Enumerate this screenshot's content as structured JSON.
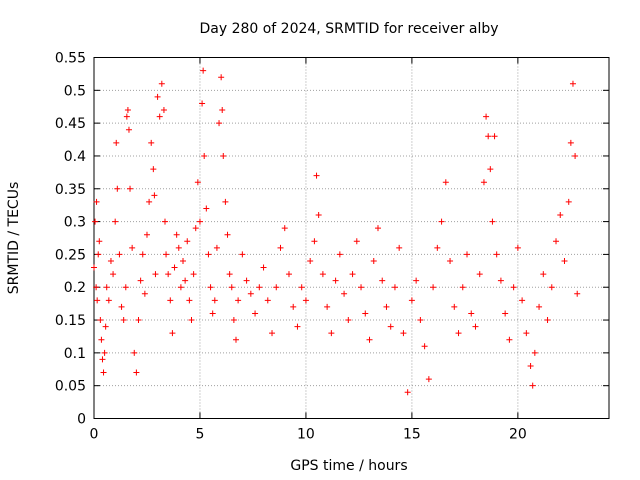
{
  "chart_data": {
    "type": "scatter",
    "title": "Day 280 of 2024, SRMTID for receiver alby",
    "xlabel": "GPS time / hours",
    "ylabel": "SRMTID / TECUs",
    "xlim": [
      0,
      24.3
    ],
    "ylim": [
      0,
      0.55
    ],
    "xticks": [
      0,
      5,
      10,
      15,
      20
    ],
    "xtick_labels": [
      "0",
      "5",
      "10",
      "15",
      "20"
    ],
    "yticks": [
      0,
      0.05,
      0.1,
      0.15,
      0.2,
      0.25,
      0.3,
      0.35,
      0.4,
      0.45,
      0.5,
      0.55
    ],
    "ytick_labels": [
      "0",
      "0.05",
      "0.1",
      "0.15",
      "0.2",
      "0.25",
      "0.3",
      "0.35",
      "0.4",
      "0.45",
      "0.5",
      "0.55"
    ],
    "grid": true,
    "marker": "plus",
    "color": "#ff0000",
    "series": [
      {
        "values": [
          [
            0.0,
            0.23
          ],
          [
            0.05,
            0.3
          ],
          [
            0.1,
            0.2
          ],
          [
            0.12,
            0.33
          ],
          [
            0.15,
            0.18
          ],
          [
            0.2,
            0.25
          ],
          [
            0.25,
            0.27
          ],
          [
            0.3,
            0.15
          ],
          [
            0.35,
            0.12
          ],
          [
            0.4,
            0.09
          ],
          [
            0.45,
            0.07
          ],
          [
            0.5,
            0.1
          ],
          [
            0.55,
            0.14
          ],
          [
            0.6,
            0.2
          ],
          [
            0.7,
            0.18
          ],
          [
            0.8,
            0.24
          ],
          [
            0.9,
            0.22
          ],
          [
            1.0,
            0.3
          ],
          [
            1.05,
            0.42
          ],
          [
            1.1,
            0.35
          ],
          [
            1.2,
            0.25
          ],
          [
            1.3,
            0.17
          ],
          [
            1.4,
            0.15
          ],
          [
            1.5,
            0.2
          ],
          [
            1.55,
            0.46
          ],
          [
            1.6,
            0.47
          ],
          [
            1.65,
            0.44
          ],
          [
            1.7,
            0.35
          ],
          [
            1.8,
            0.26
          ],
          [
            1.9,
            0.1
          ],
          [
            2.0,
            0.07
          ],
          [
            2.1,
            0.15
          ],
          [
            2.2,
            0.21
          ],
          [
            2.3,
            0.25
          ],
          [
            2.4,
            0.19
          ],
          [
            2.5,
            0.28
          ],
          [
            2.6,
            0.33
          ],
          [
            2.7,
            0.42
          ],
          [
            2.8,
            0.38
          ],
          [
            2.85,
            0.34
          ],
          [
            2.9,
            0.22
          ],
          [
            3.0,
            0.49
          ],
          [
            3.1,
            0.46
          ],
          [
            3.2,
            0.51
          ],
          [
            3.3,
            0.47
          ],
          [
            3.35,
            0.3
          ],
          [
            3.4,
            0.25
          ],
          [
            3.5,
            0.22
          ],
          [
            3.6,
            0.18
          ],
          [
            3.7,
            0.13
          ],
          [
            3.8,
            0.23
          ],
          [
            3.9,
            0.28
          ],
          [
            4.0,
            0.26
          ],
          [
            4.1,
            0.2
          ],
          [
            4.2,
            0.24
          ],
          [
            4.3,
            0.21
          ],
          [
            4.4,
            0.27
          ],
          [
            4.5,
            0.18
          ],
          [
            4.6,
            0.15
          ],
          [
            4.7,
            0.22
          ],
          [
            4.8,
            0.29
          ],
          [
            4.9,
            0.36
          ],
          [
            5.0,
            0.3
          ],
          [
            5.1,
            0.48
          ],
          [
            5.15,
            0.53
          ],
          [
            5.2,
            0.4
          ],
          [
            5.3,
            0.32
          ],
          [
            5.4,
            0.25
          ],
          [
            5.5,
            0.2
          ],
          [
            5.6,
            0.16
          ],
          [
            5.7,
            0.18
          ],
          [
            5.8,
            0.26
          ],
          [
            5.9,
            0.45
          ],
          [
            6.0,
            0.52
          ],
          [
            6.05,
            0.47
          ],
          [
            6.1,
            0.4
          ],
          [
            6.2,
            0.33
          ],
          [
            6.3,
            0.28
          ],
          [
            6.4,
            0.22
          ],
          [
            6.5,
            0.2
          ],
          [
            6.6,
            0.15
          ],
          [
            6.7,
            0.12
          ],
          [
            6.8,
            0.18
          ],
          [
            7.0,
            0.25
          ],
          [
            7.2,
            0.21
          ],
          [
            7.4,
            0.19
          ],
          [
            7.6,
            0.16
          ],
          [
            7.8,
            0.2
          ],
          [
            8.0,
            0.23
          ],
          [
            8.2,
            0.18
          ],
          [
            8.4,
            0.13
          ],
          [
            8.6,
            0.2
          ],
          [
            8.8,
            0.26
          ],
          [
            9.0,
            0.29
          ],
          [
            9.2,
            0.22
          ],
          [
            9.4,
            0.17
          ],
          [
            9.6,
            0.14
          ],
          [
            9.8,
            0.2
          ],
          [
            10.0,
            0.18
          ],
          [
            10.2,
            0.24
          ],
          [
            10.4,
            0.27
          ],
          [
            10.5,
            0.37
          ],
          [
            10.6,
            0.31
          ],
          [
            10.8,
            0.22
          ],
          [
            11.0,
            0.17
          ],
          [
            11.2,
            0.13
          ],
          [
            11.4,
            0.21
          ],
          [
            11.6,
            0.25
          ],
          [
            11.8,
            0.19
          ],
          [
            12.0,
            0.15
          ],
          [
            12.2,
            0.22
          ],
          [
            12.4,
            0.27
          ],
          [
            12.6,
            0.2
          ],
          [
            12.8,
            0.16
          ],
          [
            13.0,
            0.12
          ],
          [
            13.2,
            0.24
          ],
          [
            13.4,
            0.29
          ],
          [
            13.6,
            0.21
          ],
          [
            13.8,
            0.17
          ],
          [
            14.0,
            0.14
          ],
          [
            14.2,
            0.2
          ],
          [
            14.4,
            0.26
          ],
          [
            14.6,
            0.13
          ],
          [
            14.8,
            0.04
          ],
          [
            15.0,
            0.18
          ],
          [
            15.2,
            0.21
          ],
          [
            15.4,
            0.15
          ],
          [
            15.6,
            0.11
          ],
          [
            15.8,
            0.06
          ],
          [
            16.0,
            0.2
          ],
          [
            16.2,
            0.26
          ],
          [
            16.4,
            0.3
          ],
          [
            16.6,
            0.36
          ],
          [
            16.8,
            0.24
          ],
          [
            17.0,
            0.17
          ],
          [
            17.2,
            0.13
          ],
          [
            17.4,
            0.2
          ],
          [
            17.6,
            0.25
          ],
          [
            17.8,
            0.16
          ],
          [
            18.0,
            0.14
          ],
          [
            18.2,
            0.22
          ],
          [
            18.4,
            0.36
          ],
          [
            18.5,
            0.46
          ],
          [
            18.6,
            0.43
          ],
          [
            18.7,
            0.38
          ],
          [
            18.8,
            0.3
          ],
          [
            18.9,
            0.43
          ],
          [
            19.0,
            0.25
          ],
          [
            19.2,
            0.21
          ],
          [
            19.4,
            0.16
          ],
          [
            19.6,
            0.12
          ],
          [
            19.8,
            0.2
          ],
          [
            20.0,
            0.26
          ],
          [
            20.2,
            0.18
          ],
          [
            20.4,
            0.13
          ],
          [
            20.6,
            0.08
          ],
          [
            20.7,
            0.05
          ],
          [
            20.8,
            0.1
          ],
          [
            21.0,
            0.17
          ],
          [
            21.2,
            0.22
          ],
          [
            21.4,
            0.15
          ],
          [
            21.6,
            0.2
          ],
          [
            21.8,
            0.27
          ],
          [
            22.0,
            0.31
          ],
          [
            22.2,
            0.24
          ],
          [
            22.4,
            0.33
          ],
          [
            22.5,
            0.42
          ],
          [
            22.6,
            0.51
          ],
          [
            22.7,
            0.4
          ],
          [
            22.8,
            0.19
          ]
        ]
      }
    ]
  }
}
